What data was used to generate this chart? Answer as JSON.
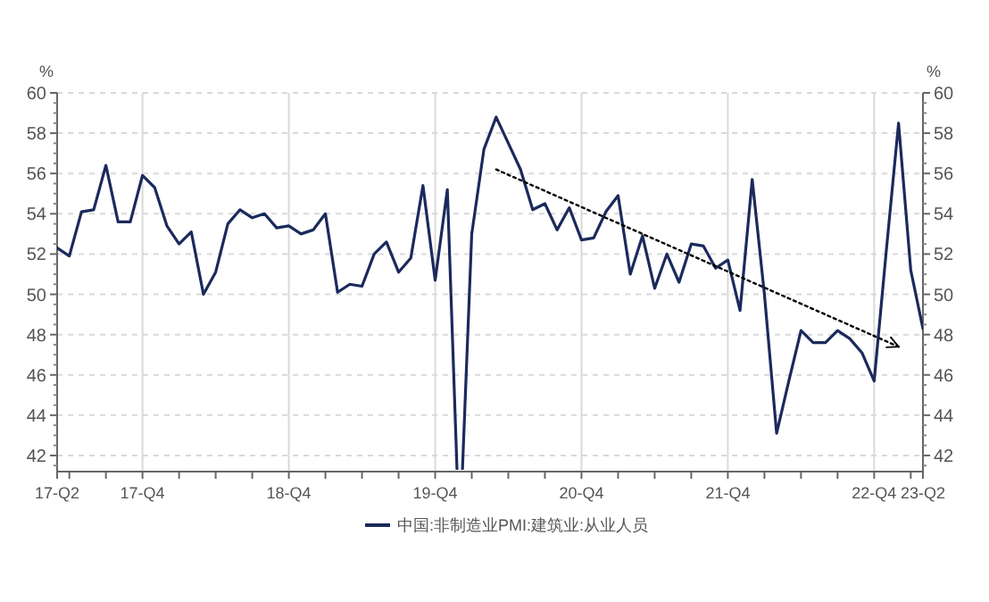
{
  "chart_data": {
    "type": "line",
    "ylabel": "%",
    "y2label": "%",
    "categories": [
      "17-Q2",
      null,
      null,
      null,
      null,
      null,
      null,
      "17-Q4",
      null,
      null,
      null,
      null,
      null,
      null,
      null,
      null,
      null,
      null,
      null,
      "18-Q4",
      null,
      null,
      null,
      null,
      null,
      null,
      null,
      null,
      null,
      null,
      null,
      "19-Q4",
      null,
      null,
      null,
      null,
      null,
      null,
      null,
      null,
      null,
      null,
      null,
      "20-Q4",
      null,
      null,
      null,
      null,
      null,
      null,
      null,
      null,
      null,
      null,
      null,
      "21-Q4",
      null,
      null,
      null,
      null,
      null,
      null,
      null,
      null,
      null,
      null,
      null,
      "22-Q4",
      null,
      null,
      null,
      "23-Q2"
    ],
    "series": [
      {
        "name": "中国:非制造业PMI:建筑业:从业人员",
        "color": "#1b2a5c",
        "values": [
          52.3,
          51.9,
          54.1,
          54.2,
          56.4,
          53.6,
          53.6,
          55.9,
          55.3,
          53.4,
          52.5,
          53.1,
          50.0,
          51.1,
          53.5,
          54.2,
          53.8,
          54.0,
          53.3,
          53.4,
          53.0,
          53.2,
          54.0,
          50.1,
          50.5,
          50.4,
          52.0,
          52.6,
          51.1,
          51.8,
          55.4,
          50.7,
          55.2,
          null,
          53.0,
          57.2,
          58.8,
          57.5,
          56.2,
          54.2,
          54.5,
          53.2,
          54.3,
          52.7,
          52.8,
          54.1,
          54.9,
          51.0,
          52.9,
          50.3,
          52.0,
          50.6,
          52.5,
          52.4,
          51.3,
          51.7,
          49.2,
          55.7,
          50.0,
          43.1,
          45.7,
          48.2,
          47.6,
          47.6,
          48.2,
          47.8,
          47.1,
          45.7,
          52.2,
          58.5,
          51.2,
          48.3
        ]
      },
      {
        "type": "line",
        "color": "#000000",
        "line_style": "dotted",
        "values": [
          null,
          null,
          null,
          null,
          null,
          null,
          null,
          null,
          null,
          null,
          null,
          null,
          null,
          null,
          null,
          null,
          null,
          null,
          null,
          null,
          null,
          null,
          null,
          null,
          null,
          null,
          null,
          null,
          null,
          null,
          null,
          null,
          null,
          null,
          null,
          null,
          56.2,
          null,
          null,
          null,
          null,
          null,
          null,
          null,
          null,
          null,
          null,
          null,
          null,
          null,
          null,
          null,
          null,
          null,
          null,
          null,
          null,
          null,
          null,
          null,
          null,
          null,
          null,
          null,
          null,
          null,
          null,
          null,
          null,
          47.4,
          null,
          null
        ]
      }
    ],
    "ylim": [
      41.2,
      60
    ],
    "yticks": [
      42,
      44,
      46,
      48,
      50,
      52,
      54,
      56,
      58,
      60
    ],
    "y2lim": [
      41.2,
      60
    ],
    "y2ticks": [
      42,
      44,
      46,
      48,
      50,
      52,
      54,
      56,
      58,
      60
    ],
    "grid": true,
    "legend": "bottom"
  }
}
